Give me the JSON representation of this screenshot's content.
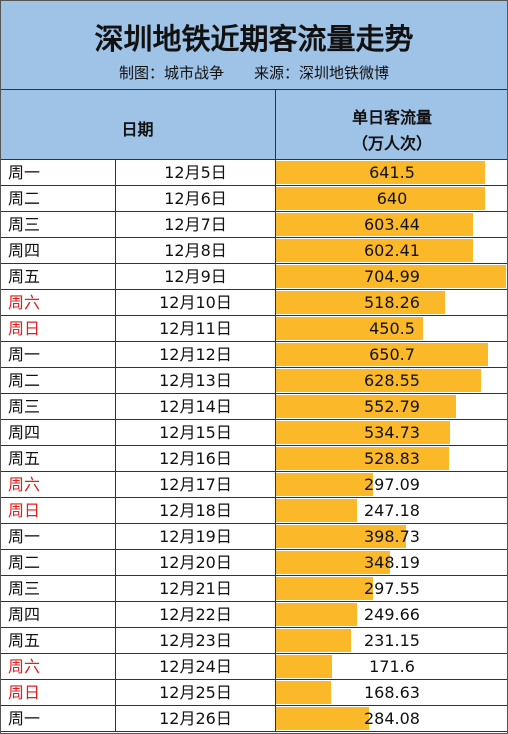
{
  "header": {
    "title": "深圳地铁近期客流量走势",
    "author": "制图：城市战争",
    "source": "来源：深圳地铁微博"
  },
  "table_headers": {
    "date": "日期",
    "flow_line1": "单日客流量",
    "flow_line2": "（万人次）"
  },
  "colors": {
    "header_bg": "#9fc3e7",
    "bar": "#fbb829",
    "weekend_text": "#e02020"
  },
  "chart_data": {
    "type": "bar",
    "orientation": "horizontal",
    "xlim": [
      0,
      704.99
    ],
    "categories": [
      "12月5日",
      "12月6日",
      "12月7日",
      "12月8日",
      "12月9日",
      "12月10日",
      "12月11日",
      "12月12日",
      "12月13日",
      "12月14日",
      "12月15日",
      "12月16日",
      "12月17日",
      "12月18日",
      "12月19日",
      "12月20日",
      "12月21日",
      "12月22日",
      "12月23日",
      "12月24日",
      "12月25日",
      "12月26日"
    ],
    "weekdays": [
      "周一",
      "周二",
      "周三",
      "周四",
      "周五",
      "周六",
      "周日",
      "周一",
      "周二",
      "周三",
      "周四",
      "周五",
      "周六",
      "周日",
      "周一",
      "周二",
      "周三",
      "周四",
      "周五",
      "周六",
      "周日",
      "周一"
    ],
    "values": [
      641.5,
      640,
      603.44,
      602.41,
      704.99,
      518.26,
      450.5,
      650.7,
      628.55,
      552.79,
      534.73,
      528.83,
      297.09,
      247.18,
      398.73,
      348.19,
      297.55,
      249.66,
      231.15,
      171.6,
      168.63,
      284.08
    ],
    "labels": [
      "641.5",
      "640",
      "603.44",
      "602.41",
      "704.99",
      "518.26",
      "450.5",
      "650.7",
      "628.55",
      "552.79",
      "534.73",
      "528.83",
      "297.09",
      "247.18",
      "398.73",
      "348.19",
      "297.55",
      "249.66",
      "231.15",
      "171.6",
      "168.63",
      "284.08"
    ]
  }
}
